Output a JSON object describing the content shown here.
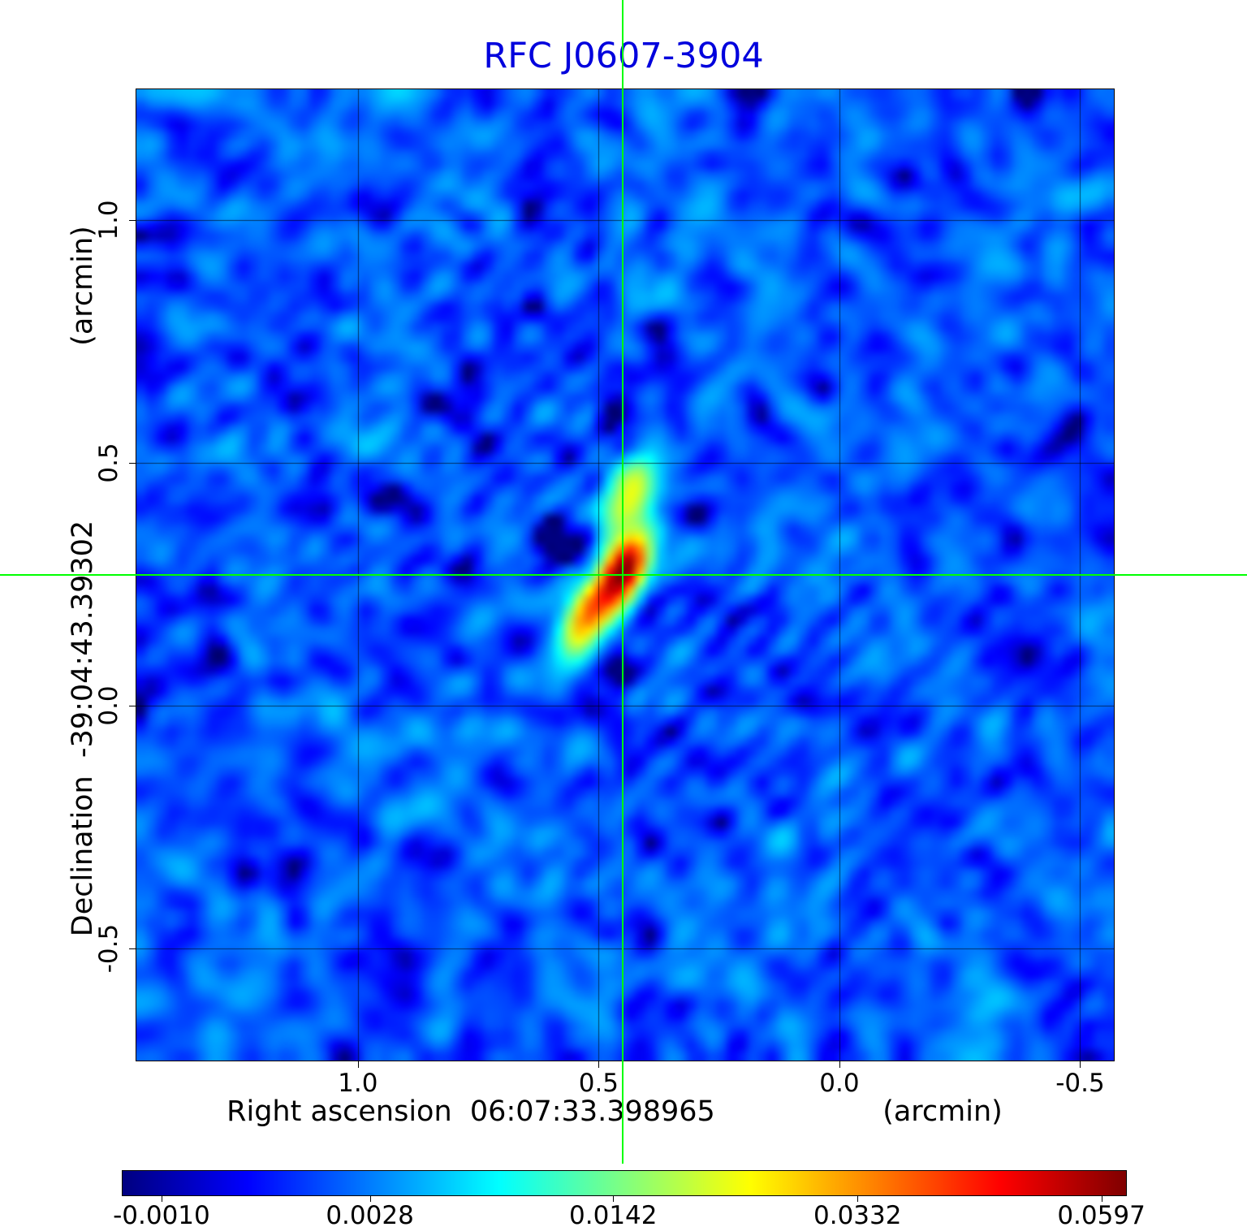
{
  "title": "RFC J0607-3904",
  "colors": {
    "title": "#0000dd",
    "crosshair": "#00ff00",
    "grid": "rgba(0,0,0,0.6)",
    "text": "#000000",
    "background": "#ffffff"
  },
  "x_axis": {
    "label": "Right ascension  06:07:33.398965",
    "unit_label": "(arcmin)",
    "tick_labels": [
      "1.0",
      "0.5",
      "0.0",
      "-0.5"
    ],
    "tick_values": [
      1.0,
      0.5,
      0.0,
      -0.5
    ]
  },
  "y_axis": {
    "label": "Declination  -39:04:43.39302",
    "unit_label": "(arcmin)",
    "tick_labels": [
      "1.0",
      "0.5",
      "0.0",
      "-0.5"
    ],
    "tick_values": [
      1.0,
      0.5,
      0.0,
      -0.5
    ]
  },
  "colorbar": {
    "colormap": "jet",
    "tick_labels": [
      "-0.0010",
      "0.0028",
      "0.0142",
      "0.0332",
      "0.0597"
    ],
    "tick_values": [
      -0.001,
      0.0028,
      0.0142,
      0.0332,
      0.0597
    ]
  },
  "chart_data": {
    "type": "heatmap",
    "title": "RFC J0607-3904",
    "xlabel": "Right ascension 06:07:33.398965 (arcmin)",
    "ylabel": "Declination -39:04:43.39302 (arcmin)",
    "x_range": [
      1.46,
      -0.57
    ],
    "y_range": [
      -0.73,
      1.27
    ],
    "x_ticks": [
      1.0,
      0.5,
      0.0,
      -0.5
    ],
    "y_ticks": [
      1.0,
      0.5,
      0.0,
      -0.5
    ],
    "grid": true,
    "colormap": "jet",
    "scale": {
      "type": "sqrt",
      "vmin": -0.0011,
      "vmax": 0.0627
    },
    "colorbar_ticks": [
      -0.001,
      0.0028,
      0.0142,
      0.0332,
      0.0597
    ],
    "crosshair": {
      "x": 0.45,
      "y": 0.27
    },
    "sources": [
      {
        "x": 0.45,
        "y": 0.275,
        "peak": 0.062,
        "sig_maj": 0.055,
        "sig_min": 0.026,
        "pa_deg": 115
      },
      {
        "x": 0.435,
        "y": 0.435,
        "peak": 0.021,
        "sig_maj": 0.062,
        "sig_min": 0.03,
        "pa_deg": 115
      },
      {
        "x": 0.525,
        "y": 0.185,
        "peak": 0.032,
        "sig_maj": 0.055,
        "sig_min": 0.027,
        "pa_deg": 115
      },
      {
        "x": 0.6,
        "y": 0.34,
        "peak": -0.0055,
        "sig_maj": 0.045,
        "sig_min": 0.025,
        "pa_deg": 115
      },
      {
        "x": 0.455,
        "y": 0.06,
        "peak": -0.0035,
        "sig_maj": 0.08,
        "sig_min": 0.02,
        "pa_deg": 90
      }
    ],
    "noise": {
      "mean": 0.0017,
      "sigma": 0.0011,
      "grid": 96,
      "seed": 607
    }
  }
}
